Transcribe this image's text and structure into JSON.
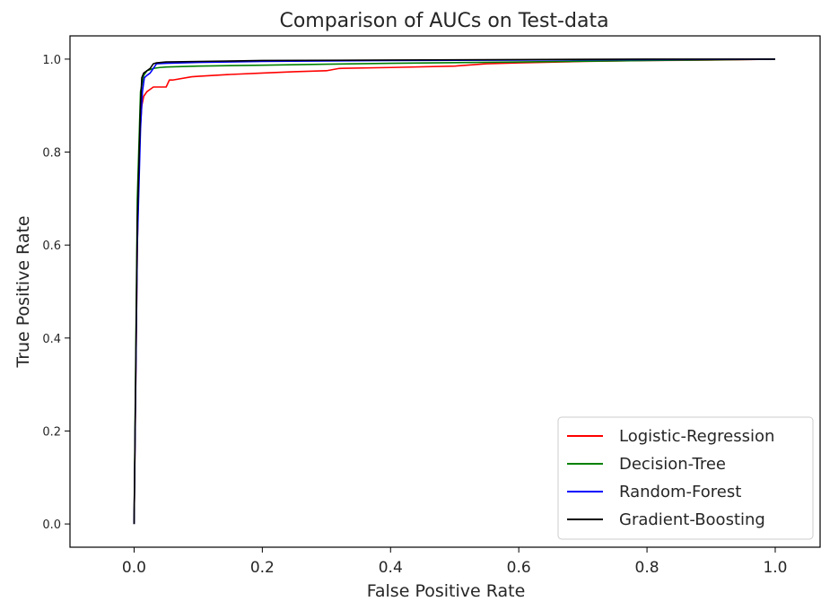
{
  "chart_data": {
    "type": "line",
    "title": "Comparison of AUCs on Test-data",
    "xlabel": "False Positive Rate",
    "ylabel": "True Positive Rate",
    "xlim": [
      -0.1,
      1.07
    ],
    "ylim": [
      -0.05,
      1.05
    ],
    "xticks": [
      0.0,
      0.2,
      0.4,
      0.6,
      0.8,
      1.0
    ],
    "xtick_labels": [
      "0.0",
      "0.2",
      "0.4",
      "0.6",
      "0.8",
      "1.0"
    ],
    "yticks": [
      0.0,
      0.2,
      0.4,
      0.6,
      0.8,
      1.0
    ],
    "ytick_labels": [
      "0.0",
      "0.2",
      "0.4",
      "0.6",
      "0.8",
      "1.0"
    ],
    "grid": false,
    "legend_position": "lower-right",
    "series": [
      {
        "name": "Logistic-Regression",
        "color": "#ff0000",
        "x": [
          0.0,
          0.005,
          0.008,
          0.01,
          0.012,
          0.015,
          0.02,
          0.025,
          0.03,
          0.05,
          0.055,
          0.06,
          0.09,
          0.1,
          0.15,
          0.2,
          0.25,
          0.3,
          0.32,
          0.4,
          0.5,
          0.55,
          0.6,
          0.7,
          0.8,
          0.9,
          1.0
        ],
        "y": [
          0.0,
          0.6,
          0.8,
          0.86,
          0.9,
          0.92,
          0.93,
          0.935,
          0.94,
          0.94,
          0.955,
          0.955,
          0.962,
          0.963,
          0.967,
          0.97,
          0.973,
          0.975,
          0.98,
          0.982,
          0.985,
          0.99,
          0.992,
          0.995,
          0.997,
          0.998,
          1.0
        ]
      },
      {
        "name": "Decision-Tree",
        "color": "#008000",
        "x": [
          0.0,
          0.005,
          0.01,
          0.015,
          0.02,
          0.03,
          0.04,
          0.05,
          0.1,
          0.2,
          0.3,
          0.4,
          0.6,
          0.8,
          1.0
        ],
        "y": [
          0.0,
          0.7,
          0.93,
          0.965,
          0.975,
          0.98,
          0.982,
          0.983,
          0.985,
          0.987,
          0.989,
          0.991,
          0.994,
          0.997,
          1.0
        ]
      },
      {
        "name": "Random-Forest",
        "color": "#0000ff",
        "x": [
          0.0,
          0.005,
          0.01,
          0.013,
          0.016,
          0.02,
          0.025,
          0.03,
          0.035,
          0.05,
          0.1,
          0.2,
          0.4,
          0.6,
          0.8,
          1.0
        ],
        "y": [
          0.0,
          0.6,
          0.85,
          0.93,
          0.96,
          0.965,
          0.97,
          0.98,
          0.99,
          0.991,
          0.993,
          0.995,
          0.997,
          0.998,
          0.999,
          1.0
        ]
      },
      {
        "name": "Gradient-Boosting",
        "color": "#000000",
        "x": [
          0.0,
          0.005,
          0.01,
          0.012,
          0.015,
          0.02,
          0.025,
          0.03,
          0.035,
          0.05,
          0.1,
          0.2,
          0.4,
          0.6,
          0.8,
          1.0
        ],
        "y": [
          0.0,
          0.65,
          0.9,
          0.96,
          0.97,
          0.975,
          0.98,
          0.99,
          0.992,
          0.994,
          0.995,
          0.997,
          0.998,
          0.999,
          1.0,
          1.0
        ]
      }
    ]
  }
}
